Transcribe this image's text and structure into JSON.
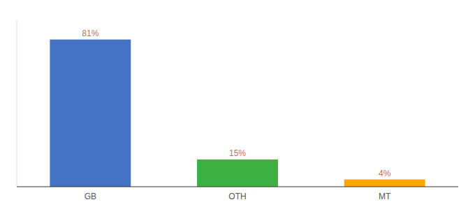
{
  "chart_data": {
    "type": "bar",
    "categories": [
      "GB",
      "OTH",
      "MT"
    ],
    "values": [
      81,
      15,
      4
    ],
    "value_labels": [
      "81%",
      "15%",
      "4%"
    ],
    "colors": [
      "#4472C4",
      "#3CB043",
      "#FFA500"
    ],
    "ylim": [
      0,
      92
    ],
    "data_labels": true,
    "tick_labels": "x",
    "grid": false
  }
}
